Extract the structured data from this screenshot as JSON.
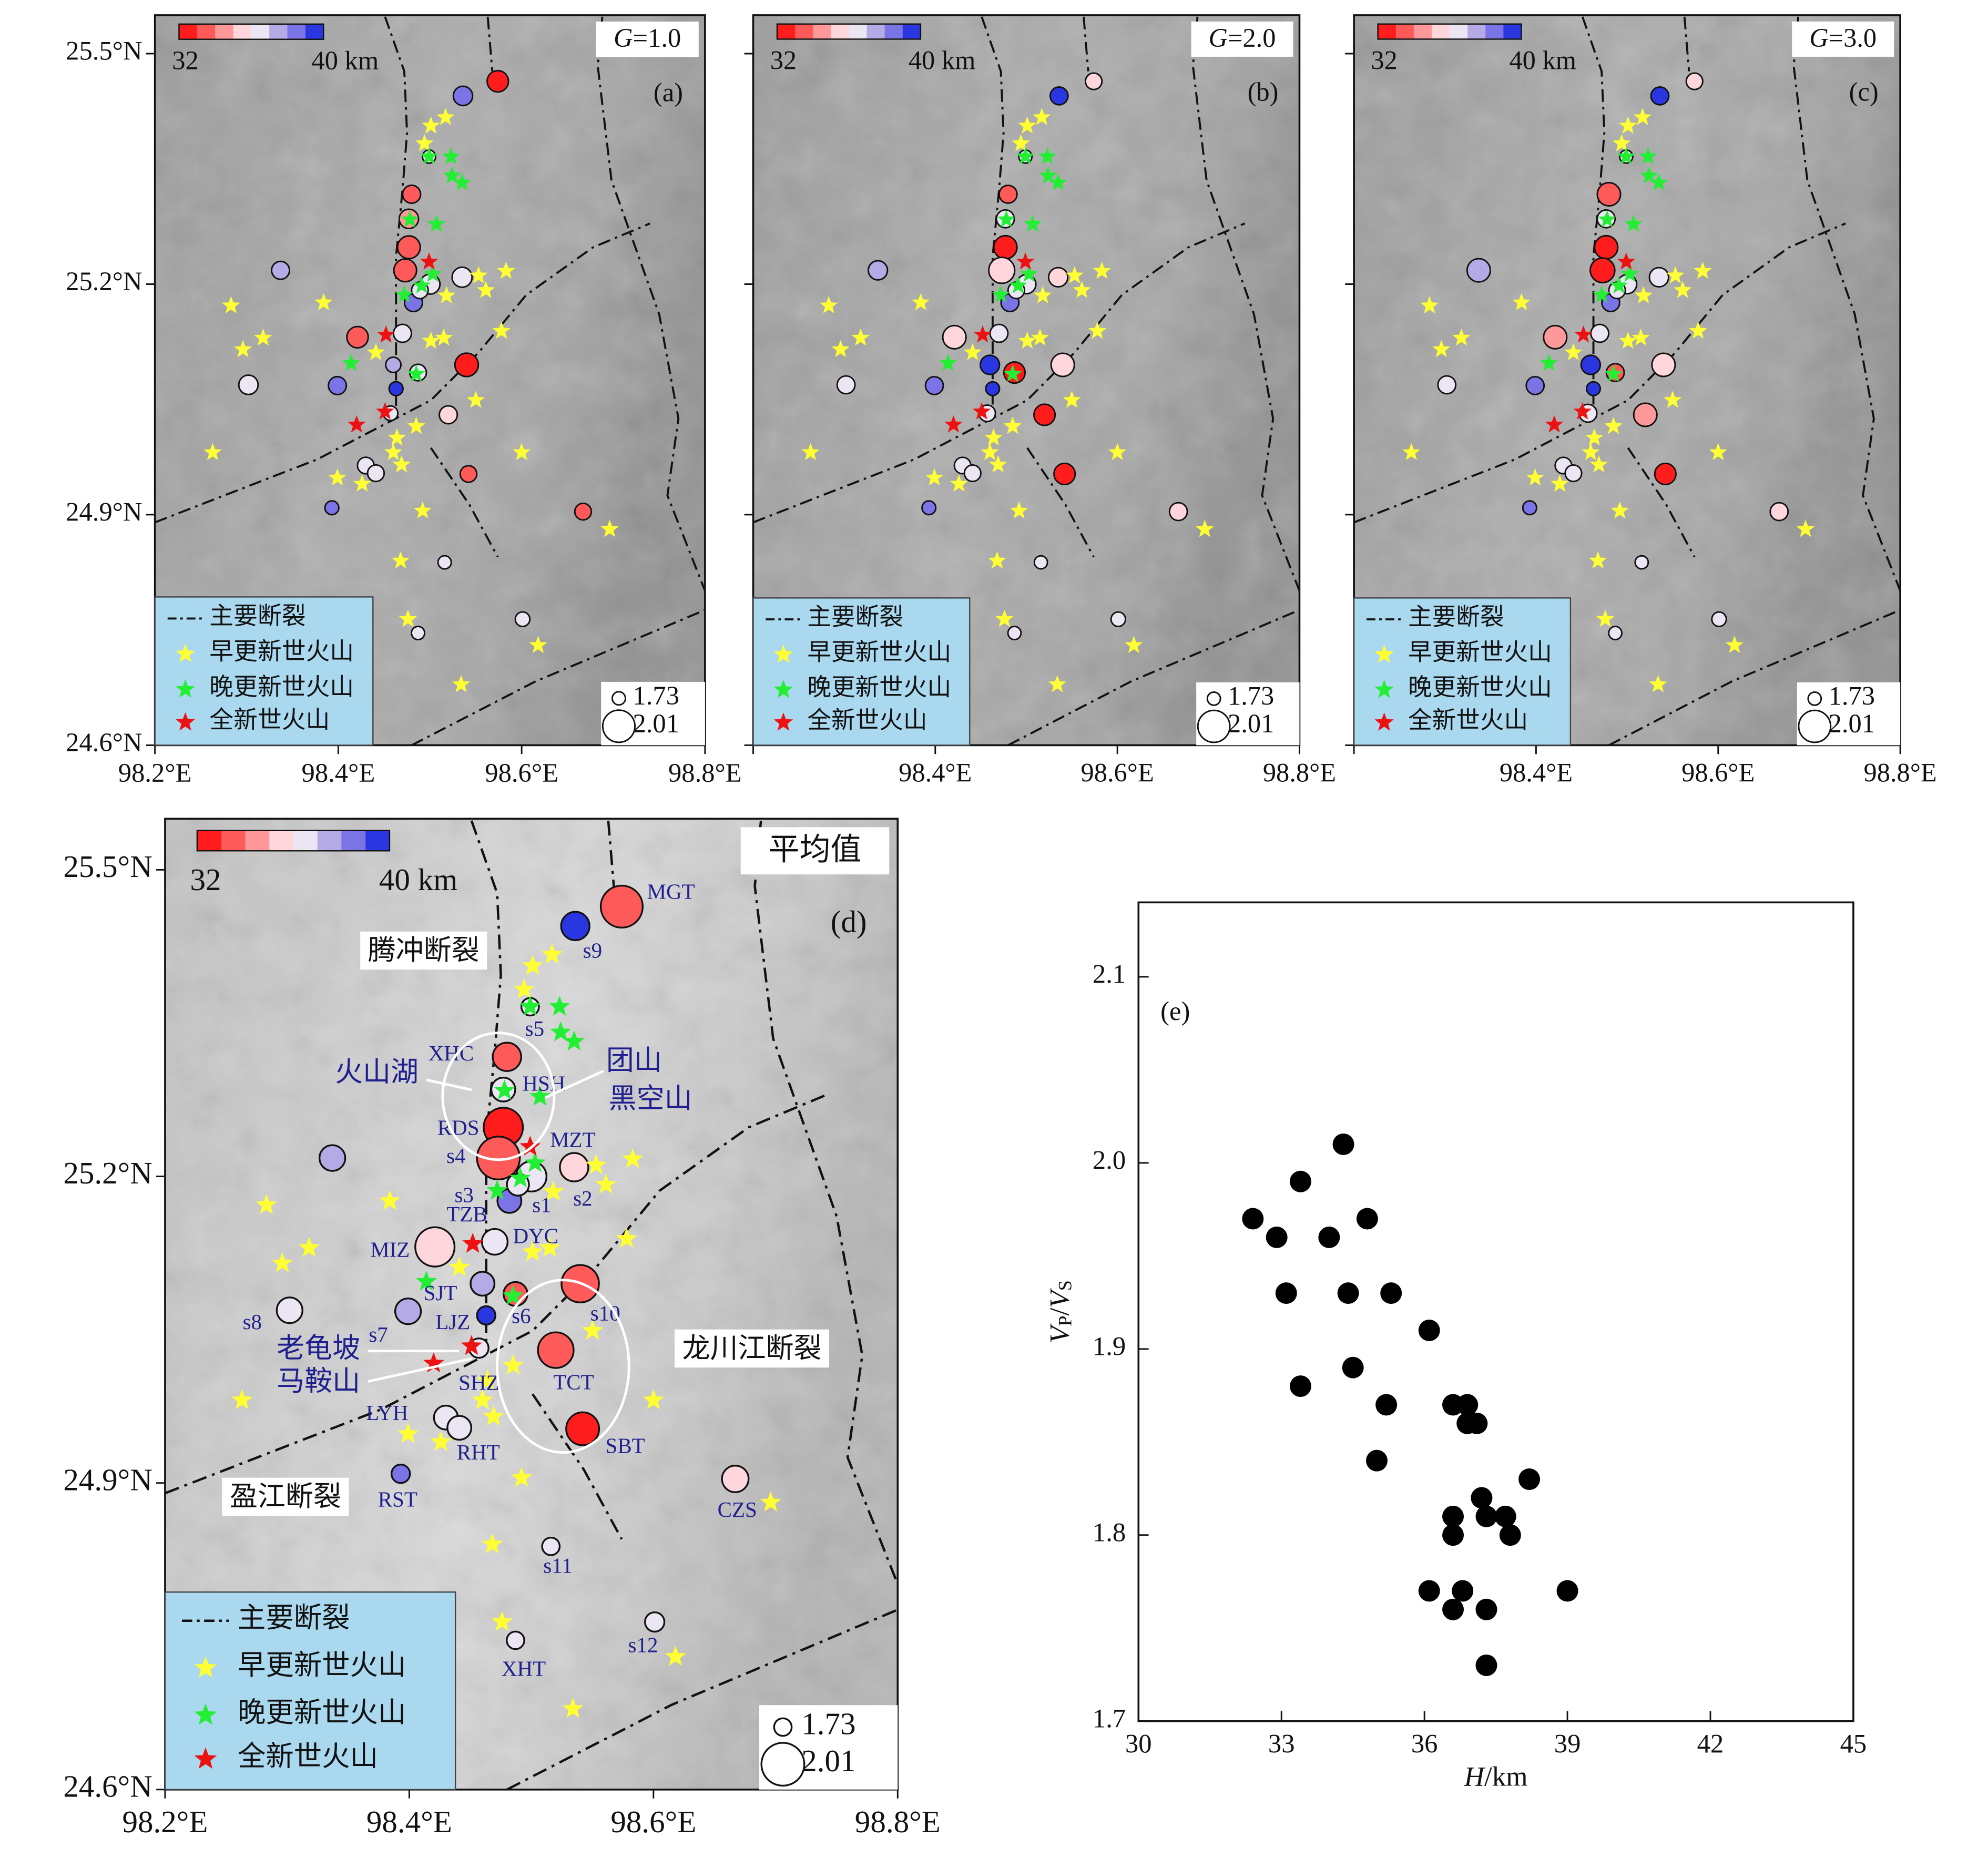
{
  "map": {
    "xlim": [
      98.2,
      98.8
    ],
    "ylim": [
      24.6,
      25.55
    ],
    "xticks": [
      {
        "value": 98.2,
        "label": "98.2°E"
      },
      {
        "value": 98.4,
        "label": "98.4°E"
      },
      {
        "value": 98.6,
        "label": "98.6°E"
      },
      {
        "value": 98.8,
        "label": "98.8°E"
      }
    ],
    "yticks": [
      {
        "value": 24.6,
        "label": "24.6°N"
      },
      {
        "value": 24.9,
        "label": "24.9°N"
      },
      {
        "value": 25.2,
        "label": "25.2°N"
      },
      {
        "value": 25.5,
        "label": "25.5°N"
      }
    ],
    "colorbar": {
      "colors": [
        "#ff1c1c",
        "#ff5a5a",
        "#ff9898",
        "#ffd6dc",
        "#ece6f4",
        "#b4abe6",
        "#7b74e6",
        "#2a36e0"
      ],
      "ticks": [
        32,
        {
          "value": 40,
          "label": "40 km"
        }
      ]
    },
    "size_legend": [
      1.73,
      2.01
    ],
    "legend_fault": "主要断裂",
    "volcano_types": [
      {
        "name": "早更新世火山",
        "color": "#ffff33",
        "points": [
          [
            98.501,
            25.406
          ],
          [
            98.517,
            25.417
          ],
          [
            98.494,
            25.383
          ],
          [
            98.553,
            25.211
          ],
          [
            98.561,
            25.192
          ],
          [
            98.583,
            25.217
          ],
          [
            98.518,
            25.185
          ],
          [
            98.578,
            25.139
          ],
          [
            98.283,
            25.172
          ],
          [
            98.296,
            25.115
          ],
          [
            98.318,
            25.13
          ],
          [
            98.384,
            25.176
          ],
          [
            98.441,
            25.111
          ],
          [
            98.501,
            25.126
          ],
          [
            98.515,
            25.13
          ],
          [
            98.55,
            25.049
          ],
          [
            98.485,
            25.015
          ],
          [
            98.464,
            25.0
          ],
          [
            98.46,
            24.981
          ],
          [
            98.469,
            24.965
          ],
          [
            98.399,
            24.948
          ],
          [
            98.426,
            24.94
          ],
          [
            98.6,
            24.981
          ],
          [
            98.263,
            24.981
          ],
          [
            98.492,
            24.905
          ],
          [
            98.696,
            24.881
          ],
          [
            98.468,
            24.84
          ],
          [
            98.476,
            24.764
          ],
          [
            98.618,
            24.73
          ],
          [
            98.534,
            24.679
          ]
        ]
      },
      {
        "name": "晚更新世火山",
        "color": "#22ee33",
        "points": [
          [
            98.499,
            25.366
          ],
          [
            98.523,
            25.366
          ],
          [
            98.524,
            25.341
          ],
          [
            98.535,
            25.332
          ],
          [
            98.478,
            25.284
          ],
          [
            98.507,
            25.278
          ],
          [
            98.503,
            25.213
          ],
          [
            98.491,
            25.198
          ],
          [
            98.472,
            25.186
          ],
          [
            98.414,
            25.097
          ],
          [
            98.485,
            25.083
          ]
        ]
      },
      {
        "name": "全新世火山",
        "color": "#ee1111",
        "points": [
          [
            98.499,
            25.229
          ],
          [
            98.452,
            25.134
          ],
          [
            98.42,
            25.017
          ],
          [
            98.451,
            25.034
          ]
        ]
      }
    ],
    "faults": [
      [
        [
          98.451,
          25.548
        ],
        [
          98.472,
          25.477
        ],
        [
          98.475,
          25.397
        ],
        [
          98.47,
          25.322
        ],
        [
          98.463,
          25.236
        ],
        [
          98.463,
          25.037
        ]
      ],
      [
        [
          98.563,
          25.548
        ],
        [
          98.568,
          25.477
        ]
      ],
      [
        [
          98.688,
          25.548
        ],
        [
          98.683,
          25.484
        ],
        [
          98.698,
          25.335
        ],
        [
          98.75,
          25.161
        ],
        [
          98.771,
          25.025
        ],
        [
          98.759,
          24.925
        ],
        [
          98.8,
          24.801
        ]
      ],
      [
        [
          98.2,
          24.89
        ],
        [
          98.377,
          24.972
        ],
        [
          98.501,
          25.049
        ],
        [
          98.553,
          25.111
        ],
        [
          98.605,
          25.186
        ],
        [
          98.678,
          25.248
        ],
        [
          98.74,
          25.279
        ]
      ],
      [
        [
          98.501,
          24.987
        ],
        [
          98.543,
          24.913
        ],
        [
          98.574,
          24.845
        ]
      ],
      [
        [
          98.48,
          24.6
        ],
        [
          98.615,
          24.683
        ],
        [
          98.8,
          24.776
        ]
      ]
    ],
    "stations": [
      {
        "name": "MGT",
        "lon": 98.574,
        "lat": 25.464
      },
      {
        "name": "s9",
        "lon": 98.536,
        "lat": 25.445
      },
      {
        "name": "s5",
        "lon": 98.499,
        "lat": 25.366
      },
      {
        "name": "XHC",
        "lon": 98.48,
        "lat": 25.317
      },
      {
        "name": "HSH",
        "lon": 98.477,
        "lat": 25.285
      },
      {
        "name": "RDS",
        "lon": 98.477,
        "lat": 25.248
      },
      {
        "name": "s4",
        "lon": 98.473,
        "lat": 25.218
      },
      {
        "name": "MZT",
        "lon": 98.535,
        "lat": 25.209
      },
      {
        "name": "s1",
        "lon": 98.482,
        "lat": 25.176
      },
      {
        "name": "s2",
        "lon": 98.5,
        "lat": 25.2
      },
      {
        "name": "TZB",
        "lon": 98.47,
        "lat": 25.136
      },
      {
        "name": "MIZ",
        "lon": 98.421,
        "lat": 25.131
      },
      {
        "name": "s7",
        "lon": 98.399,
        "lat": 25.068
      },
      {
        "name": "s8",
        "lon": 98.302,
        "lat": 25.069
      },
      {
        "name": "s6",
        "lon": 98.487,
        "lat": 25.085
      },
      {
        "name": "DYC",
        "lon": 98.46,
        "lat": 25.095
      },
      {
        "name": "s10",
        "lon": 98.54,
        "lat": 25.095
      },
      {
        "name": "LJZ",
        "lon": 98.463,
        "lat": 25.064
      },
      {
        "name": "TCT",
        "lon": 98.52,
        "lat": 25.03
      },
      {
        "name": "SBT",
        "lon": 98.542,
        "lat": 24.953
      },
      {
        "name": "SHZ",
        "lon": 98.457,
        "lat": 25.032
      },
      {
        "name": "LYH",
        "lon": 98.43,
        "lat": 24.964
      },
      {
        "name": "RHT",
        "lon": 98.441,
        "lat": 24.954
      },
      {
        "name": "RST",
        "lon": 98.393,
        "lat": 24.909
      },
      {
        "name": "CZS",
        "lon": 98.667,
        "lat": 24.904
      },
      {
        "name": "s11",
        "lon": 98.516,
        "lat": 24.838
      },
      {
        "name": "s12",
        "lon": 98.601,
        "lat": 24.764
      },
      {
        "name": "XHT",
        "lon": 98.487,
        "lat": 24.746
      },
      {
        "name": null,
        "lon": 98.337,
        "lat": 25.218
      },
      {
        "name": "s3",
        "lon": 98.489,
        "lat": 25.192
      }
    ]
  },
  "chart_data": [
    {
      "type": "map",
      "label": "(a)",
      "tag_symbol": "G",
      "tag_text": "=1.0",
      "depth": [
        32.5,
        38,
        36,
        33.5,
        34,
        33,
        33,
        36,
        38,
        36,
        36,
        33.5,
        38,
        36,
        36,
        37.5,
        32.5,
        40,
        35,
        33.5,
        36,
        36,
        36,
        38,
        33.5,
        36,
        36,
        36,
        37.5,
        36
      ],
      "ratio": [
        1.85,
        1.82,
        1.73,
        1.8,
        1.82,
        1.87,
        1.87,
        1.83,
        1.8,
        1.83,
        1.8,
        1.85,
        1.8,
        1.82,
        1.78,
        1.76,
        1.88,
        1.74,
        1.8,
        1.78,
        1.75,
        1.78,
        1.78,
        1.74,
        1.78,
        1.73,
        1.75,
        1.73,
        1.8,
        1.78
      ]
    },
    {
      "type": "map",
      "label": "(b)",
      "tag_symbol": "G",
      "tag_text": "=2.0",
      "depth": [
        35.5,
        39.5,
        36,
        33.5,
        36,
        32.3,
        35,
        35.5,
        38,
        36,
        36,
        35,
        38,
        36,
        32.5,
        39,
        35,
        40,
        32.5,
        32.5,
        36,
        36,
        36,
        38,
        35,
        36,
        36,
        36,
        37.5,
        36
      ],
      "ratio": [
        1.78,
        1.8,
        1.73,
        1.8,
        1.8,
        1.88,
        1.92,
        1.82,
        1.8,
        1.82,
        1.8,
        1.88,
        1.8,
        1.8,
        1.85,
        1.82,
        1.88,
        1.74,
        1.85,
        1.85,
        1.78,
        1.78,
        1.78,
        1.74,
        1.8,
        1.73,
        1.75,
        1.73,
        1.82,
        1.78
      ]
    },
    {
      "type": "map",
      "label": "(c)",
      "tag_symbol": "G",
      "tag_text": "=3.0",
      "depth": [
        35.5,
        39.5,
        36,
        33.5,
        36,
        32.3,
        32.5,
        36,
        38,
        36,
        36,
        34.5,
        38,
        36,
        33,
        39,
        35,
        40,
        34.5,
        32.5,
        36,
        36,
        36,
        38,
        35,
        36,
        36,
        36,
        37.5,
        36
      ],
      "ratio": [
        1.78,
        1.8,
        1.73,
        1.88,
        1.8,
        1.88,
        1.9,
        1.82,
        1.8,
        1.82,
        1.8,
        1.88,
        1.8,
        1.8,
        1.8,
        1.82,
        1.88,
        1.74,
        1.88,
        1.85,
        1.8,
        1.78,
        1.78,
        1.74,
        1.8,
        1.73,
        1.75,
        1.73,
        1.88,
        1.78
      ]
    },
    {
      "type": "map",
      "label": "(d)",
      "tag_text": "平均值",
      "place_labels": [
        "腾冲断裂",
        "盈江断裂",
        "龙川江断裂",
        "火山湖",
        "团山",
        "黑空山",
        "老龟坡",
        "马鞍山",
        "SJT"
      ],
      "depth": [
        33.5,
        39,
        36,
        33.5,
        36,
        32.3,
        33,
        35.5,
        38,
        36,
        36,
        35,
        37.5,
        36,
        33,
        37.5,
        33.5,
        40,
        33.5,
        32.5,
        36,
        36,
        36,
        38,
        35,
        36,
        36,
        36,
        37.5,
        36
      ],
      "ratio": [
        2.0,
        1.85,
        1.73,
        1.85,
        1.8,
        1.97,
        2.01,
        1.85,
        1.8,
        1.87,
        1.82,
        1.97,
        1.82,
        1.82,
        1.8,
        1.8,
        1.95,
        1.74,
        1.93,
        1.9,
        1.75,
        1.8,
        1.8,
        1.74,
        1.83,
        1.73,
        1.75,
        1.73,
        1.82,
        1.78
      ]
    },
    {
      "type": "scatter",
      "label": "(e)",
      "xlabel": [
        "H",
        "/km"
      ],
      "ylabel": [
        "V",
        "P",
        "/",
        "V",
        "S"
      ],
      "xlim": [
        30,
        45
      ],
      "ylim": [
        1.7,
        2.14
      ],
      "xticks": [
        30,
        33,
        36,
        39,
        42,
        45
      ],
      "yticks": [
        1.7,
        1.8,
        1.9,
        {
          "value": 2,
          "label": "2.0"
        },
        2.1
      ],
      "color": "#000000",
      "x": [
        34.3,
        32.4,
        33.4,
        32.9,
        34.0,
        34.8,
        33.1,
        34.4,
        35.3,
        36.1,
        34.5,
        33.4,
        35.2,
        36.6,
        36.9,
        37.1,
        36.9,
        35.0,
        38.2,
        37.2,
        36.6,
        37.3,
        37.7,
        36.6,
        37.8,
        36.1,
        36.8,
        39.0,
        36.6,
        37.3,
        37.3
      ],
      "y": [
        2.01,
        1.97,
        1.99,
        1.96,
        1.96,
        1.97,
        1.93,
        1.93,
        1.93,
        1.91,
        1.89,
        1.88,
        1.87,
        1.87,
        1.87,
        1.86,
        1.86,
        1.84,
        1.83,
        1.82,
        1.81,
        1.81,
        1.81,
        1.8,
        1.8,
        1.77,
        1.77,
        1.77,
        1.76,
        1.76,
        1.73
      ]
    }
  ]
}
